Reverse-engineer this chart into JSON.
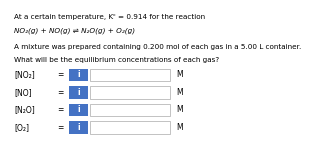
{
  "title_line1": "At a certain temperature, Kᶜ = 0.914 for the reaction",
  "reaction": "NO₂(g) + NO(g) ⇌ N₂O(g) + O₂(g)",
  "body_line1": "A mixture was prepared containing 0.200 mol of each gas in a 5.00 L container.",
  "body_line2": "What will be the equilibrium concentrations of each gas?",
  "labels": [
    "[NO₂]",
    "[NO]",
    "[N₂O]",
    "[O₂]"
  ],
  "equal_sign": "=",
  "unit": "M",
  "box_color": "#4472c4",
  "input_box_color": "#ffffff",
  "input_box_border": "#aaaaaa",
  "background_color": "#ffffff",
  "text_color": "#000000",
  "font_size_title": 5.2,
  "font_size_body": 5.2,
  "font_size_label": 5.5
}
